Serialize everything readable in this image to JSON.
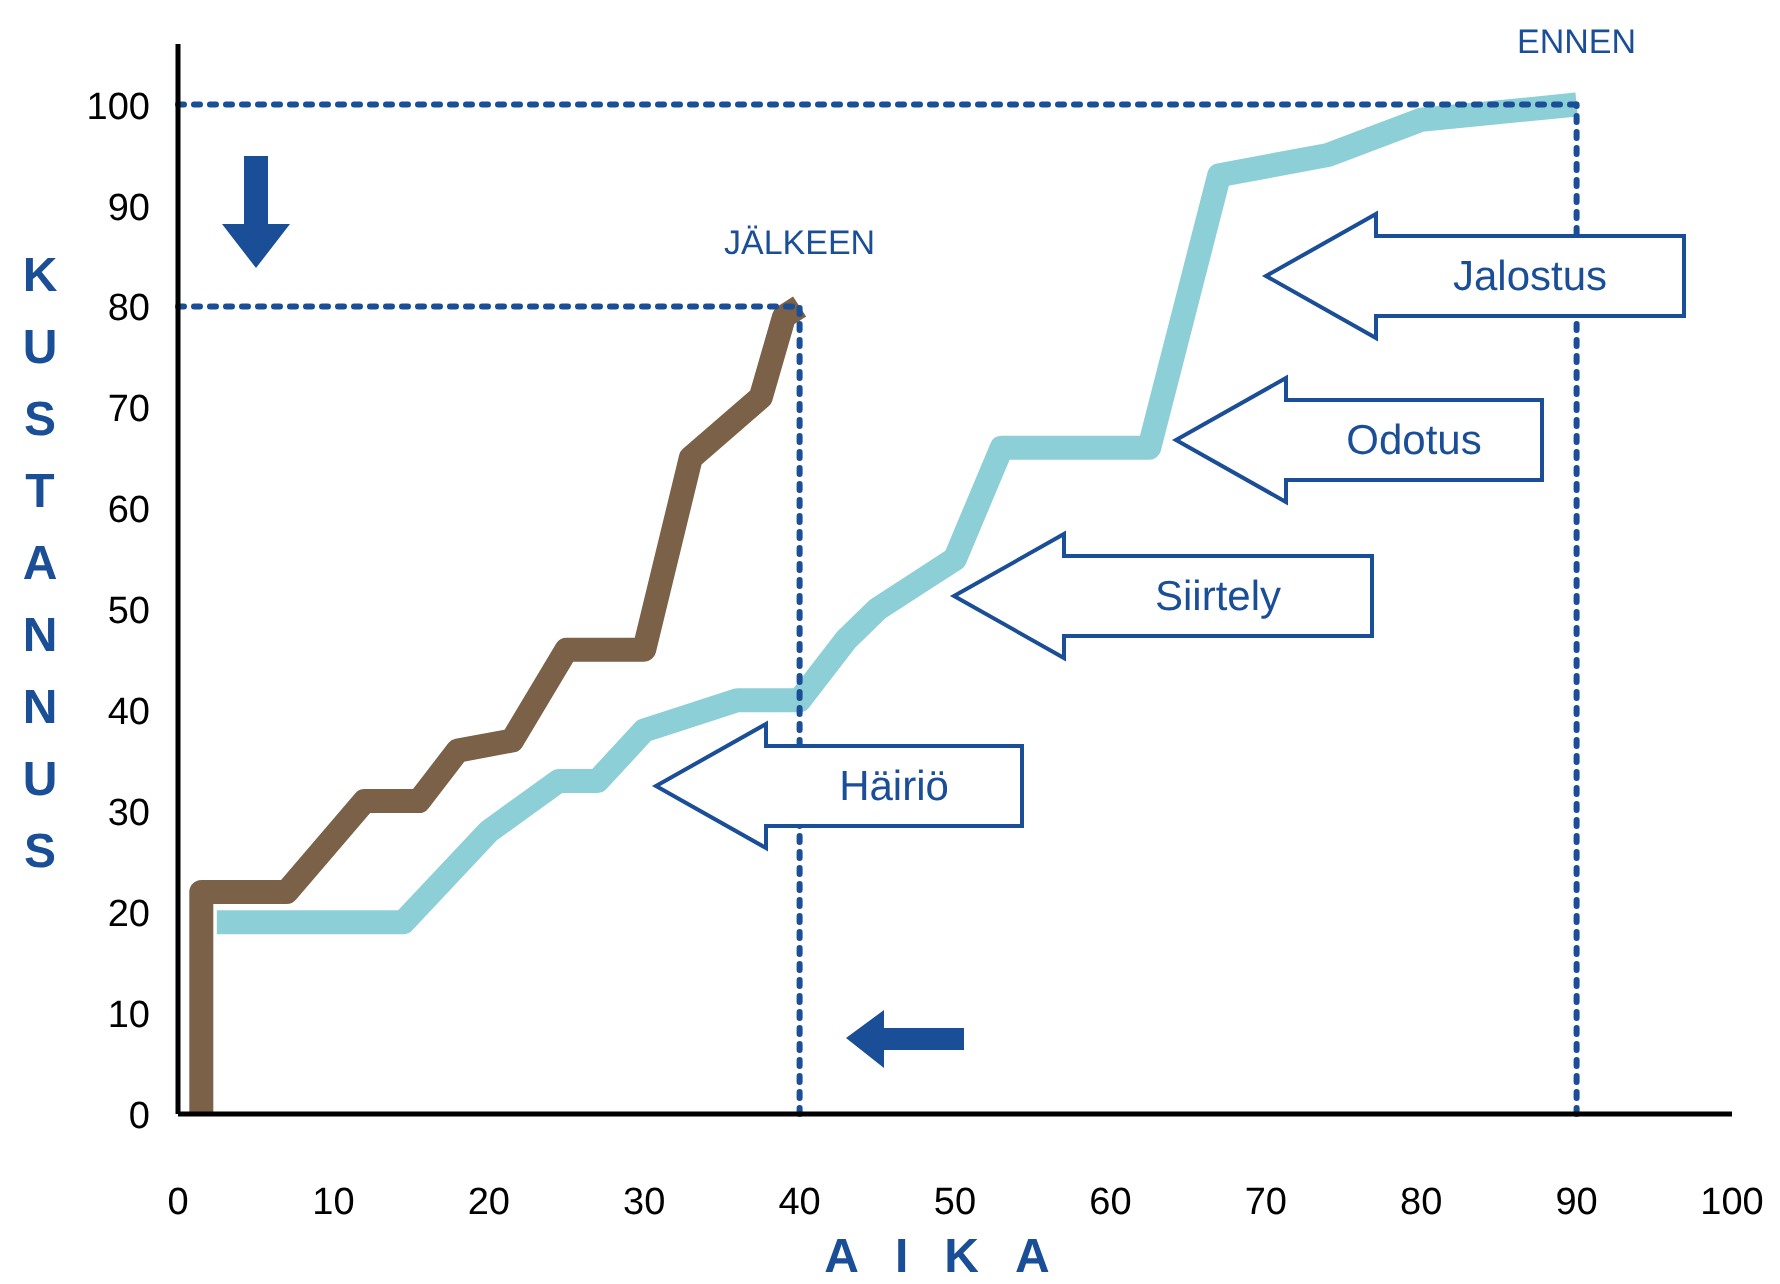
{
  "chart_data": {
    "type": "line",
    "xlabel": "AIKA",
    "ylabel": "KUSTANNUS",
    "xlim": [
      0,
      100
    ],
    "ylim": [
      0,
      106
    ],
    "xticks": [
      0,
      10,
      20,
      30,
      40,
      50,
      60,
      70,
      80,
      90,
      100
    ],
    "yticks": [
      0,
      10,
      20,
      30,
      40,
      50,
      60,
      70,
      80,
      90,
      100
    ],
    "grid": false,
    "line_style": "solid",
    "series": [
      {
        "color": "#7a6148",
        "x": [
          1.5,
          1.5,
          7,
          12,
          15.5,
          18,
          21.5,
          25,
          30,
          33,
          37.5,
          39,
          40
        ],
        "values": [
          0,
          22,
          22,
          31,
          31,
          36,
          37,
          46,
          46,
          65,
          71,
          79,
          80
        ]
      },
      {
        "color": "#8dcfd6",
        "x": [
          2.5,
          14.5,
          20,
          24.5,
          27,
          30,
          32,
          36,
          40,
          43,
          45,
          48,
          50,
          53,
          62.5,
          67,
          74,
          80,
          90
        ],
        "values": [
          19,
          19,
          28,
          33,
          33,
          38,
          39,
          41,
          41,
          47,
          50,
          53,
          55,
          66,
          66,
          93,
          95,
          98.5,
          100
        ]
      }
    ],
    "ref_lines": [
      {
        "axis": "x",
        "value": 90,
        "label": "ENNEN",
        "color": "#1a4e96",
        "line_style": "dotted"
      },
      {
        "axis": "y",
        "value": 100,
        "color": "#1a4e96",
        "line_style": "dotted"
      },
      {
        "axis": "x",
        "value": 40,
        "label": "JÄLKEEN",
        "color": "#1a4e96",
        "line_style": "dotted"
      },
      {
        "axis": "y",
        "value": 80,
        "color": "#1a4e96",
        "line_style": "dotted"
      }
    ],
    "annotations": [
      "Jalostus",
      "Odotus",
      "Siirtely",
      "Häiriö"
    ]
  }
}
